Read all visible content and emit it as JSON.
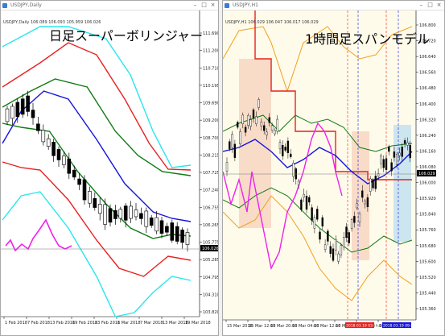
{
  "left": {
    "window_title": "USDJPY,Daily",
    "symbol_line": "USDJPY,Daily 106.089 106.093 105.959 106.026",
    "overlay_title": "日足スーパーボリンジャー",
    "price_ticks": [
      "111.690",
      "111.200",
      "110.710",
      "110.195",
      "109.690",
      "109.200",
      "108.700",
      "108.215",
      "107.725",
      "107.240",
      "106.755",
      "106.265",
      "105.775",
      "105.285",
      "104.795",
      "104.310",
      "103.820"
    ],
    "date_ticks": [
      "1 Feb 2018",
      "7 Feb 2018",
      "13 Feb 2018",
      "19 Feb 2018",
      "23 Feb 2018",
      "1 Mar 2018",
      "7 Mar 2018",
      "13 Mar 2018",
      "19 Mar 2018"
    ],
    "current_price": "106.026",
    "colors": {
      "red": "#e8201e",
      "green": "#0f7a14",
      "blue": "#1515dc",
      "cyan": "#29e6ec",
      "magenta": "#ee22ee"
    }
  },
  "right": {
    "window_title": "USDJPY,H1",
    "symbol_line": "USDJPY,H1 106.029 106.047 106.017 106.029",
    "overlay_title": "1時間足スパンモデル",
    "price_ticks": [
      "106.800",
      "106.720",
      "106.640",
      "106.560",
      "106.480",
      "106.400",
      "106.320",
      "106.240",
      "106.160",
      "106.080",
      "106.000",
      "105.920",
      "105.840",
      "105.760",
      "105.680",
      "105.600",
      "105.520",
      "105.440",
      "105.360"
    ],
    "date_ticks": [
      "15 Mar 2018",
      "15 Mar 12:00",
      "15 Mar 20:00",
      "16 Mar 04:00",
      "16 Mar 12:00",
      "16 Mar 20:00",
      "19 Mar 04:00",
      "19 Mar 12:00"
    ],
    "current_price": "106.029",
    "marker_labels": [
      "2018.03.19 03:00",
      "2018.03.19 09:00"
    ],
    "colors": {
      "red": "#e8201e",
      "green": "#0f7a14",
      "blue": "#1515dc",
      "magenta": "#ee22ee",
      "orange": "#f0a020",
      "cloud_red": "#f4c8b0",
      "cloud_blue": "#bfe0f0",
      "background": "#fffbea"
    }
  }
}
